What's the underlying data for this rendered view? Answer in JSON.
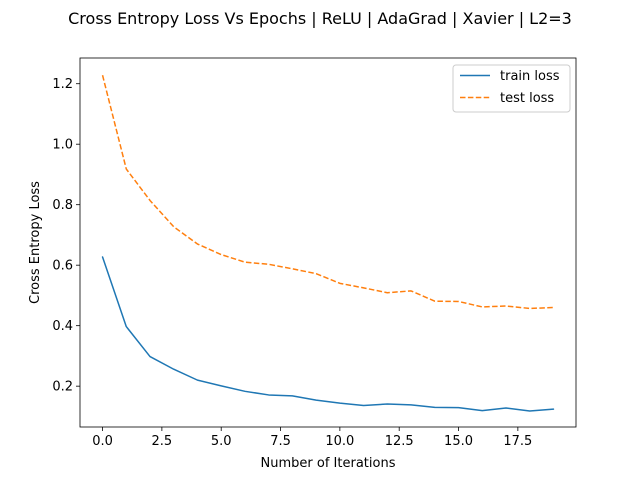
{
  "chart_data": {
    "type": "line",
    "title": "Cross Entropy Loss Vs Epochs | ReLU | AdaGrad | Xavier | L2=3",
    "xlabel": "Number of Iterations",
    "ylabel": "Cross Entropy Loss",
    "xlim": [
      -0.95,
      19.95
    ],
    "ylim": [
      0.065,
      1.285
    ],
    "xticks": [
      0.0,
      2.5,
      5.0,
      7.5,
      10.0,
      12.5,
      15.0,
      17.5
    ],
    "xtick_labels": [
      "0.0",
      "2.5",
      "5.0",
      "7.5",
      "10.0",
      "12.5",
      "15.0",
      "17.5"
    ],
    "yticks": [
      0.2,
      0.4,
      0.6,
      0.8,
      1.0,
      1.2
    ],
    "ytick_labels": [
      "0.2",
      "0.4",
      "0.6",
      "0.8",
      "1.0",
      "1.2"
    ],
    "grid": false,
    "legend_position": "upper right",
    "x": [
      0,
      1,
      2,
      3,
      4,
      5,
      6,
      7,
      8,
      9,
      10,
      11,
      12,
      13,
      14,
      15,
      16,
      17,
      18,
      19
    ],
    "series": [
      {
        "name": "train loss",
        "color": "#1f77b4",
        "style": "solid",
        "values": [
          0.627,
          0.397,
          0.298,
          0.256,
          0.22,
          0.201,
          0.183,
          0.171,
          0.168,
          0.154,
          0.144,
          0.136,
          0.141,
          0.138,
          0.13,
          0.129,
          0.119,
          0.128,
          0.118,
          0.124
        ]
      },
      {
        "name": "test loss",
        "color": "#ff7f0e",
        "style": "dashed",
        "values": [
          1.228,
          0.918,
          0.814,
          0.727,
          0.67,
          0.635,
          0.61,
          0.603,
          0.588,
          0.572,
          0.54,
          0.525,
          0.509,
          0.515,
          0.481,
          0.48,
          0.462,
          0.465,
          0.457,
          0.46
        ]
      }
    ]
  }
}
